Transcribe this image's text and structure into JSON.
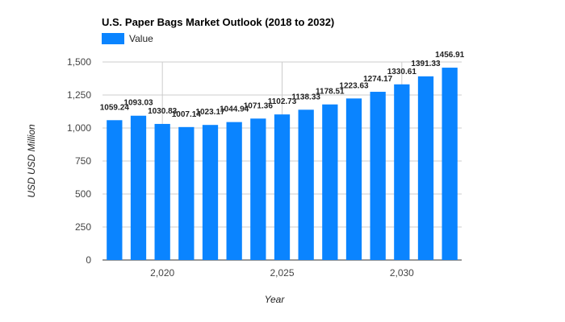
{
  "chart_data": {
    "type": "bar",
    "title": "U.S. Paper Bags Market Outlook (2018 to 2032)",
    "xlabel": "Year",
    "ylabel": "USD USD Million",
    "series": [
      {
        "name": "Value",
        "color": "#0a84ff",
        "x": [
          2018,
          2019,
          2020,
          2021,
          2022,
          2023,
          2024,
          2025,
          2026,
          2027,
          2028,
          2029,
          2030,
          2031,
          2032
        ],
        "values": [
          1059.24,
          1093.03,
          1030.83,
          1007.14,
          1023.17,
          1044.94,
          1071.36,
          1102.73,
          1138.33,
          1178.51,
          1223.63,
          1274.17,
          1330.61,
          1391.33,
          1456.91
        ],
        "labels": [
          "1059.24",
          "1093.03",
          "1030.83",
          "1007.14",
          "1023.17",
          "1044.94",
          "1071.36",
          "1102.73",
          "1138.33",
          "1178.51",
          "1223.63",
          "1274.17",
          "1330.61",
          "1391.33",
          "1456.91"
        ]
      }
    ],
    "ylim": [
      0,
      1500
    ],
    "yticks": [
      0,
      250,
      500,
      750,
      1000,
      1250,
      1500
    ],
    "ytick_labels": [
      "0",
      "250",
      "500",
      "750",
      "1,000",
      "1,250",
      "1,500"
    ],
    "xticks": [
      2020,
      2025,
      2030
    ],
    "xtick_labels": [
      "2,020",
      "2,025",
      "2,030"
    ],
    "grid": true,
    "legend": "top-left"
  }
}
